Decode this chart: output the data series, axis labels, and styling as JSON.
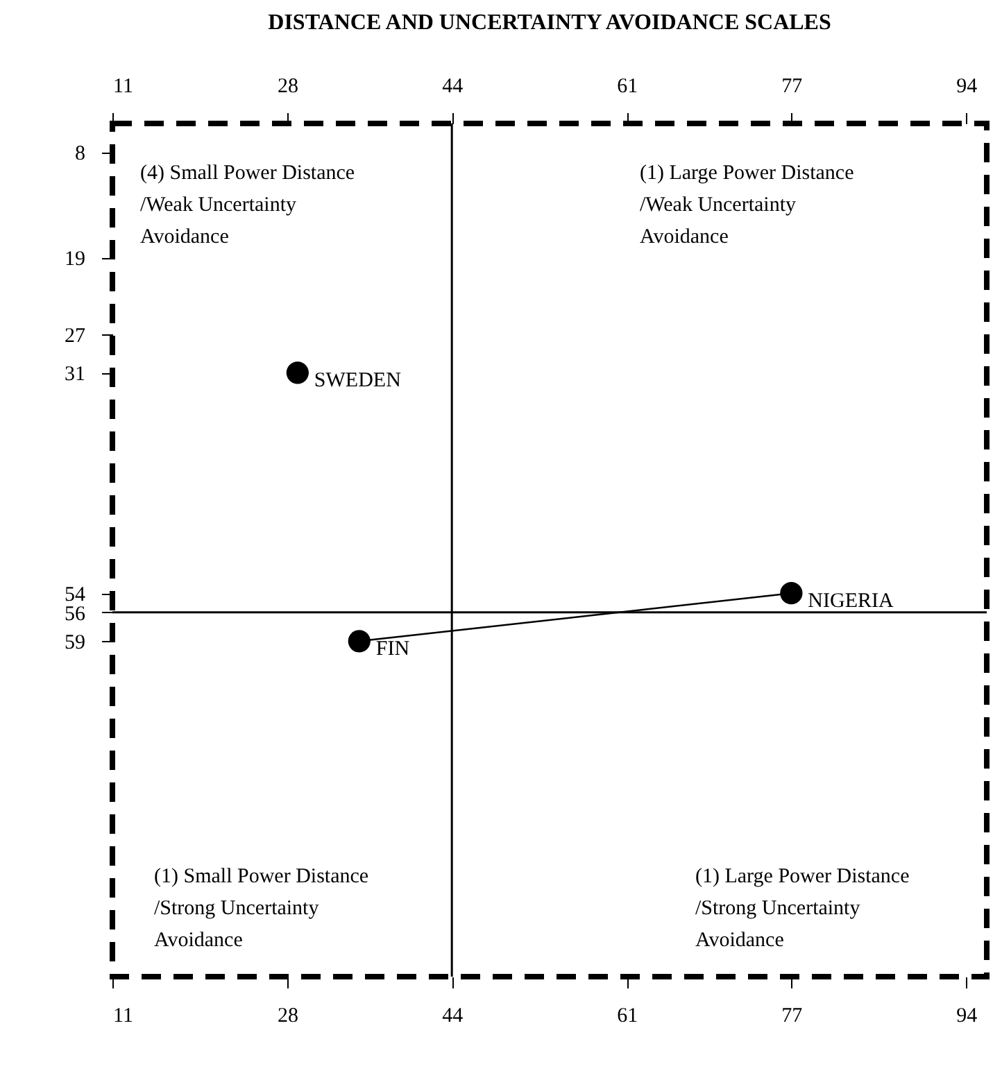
{
  "chart_data": {
    "type": "scatter",
    "title": "DISTANCE AND UNCERTAINTY AVOIDANCE SCALES",
    "x": [
      29,
      35,
      77
    ],
    "series": [
      {
        "color": "#000000",
        "values": [
          31,
          59,
          54
        ]
      }
    ],
    "marker": "circle",
    "grid": false,
    "xlim": [
      11,
      96
    ],
    "xticks": [
      11,
      28,
      44,
      61,
      77,
      94
    ],
    "x2lim": [
      11,
      96
    ],
    "x2ticks": [
      11,
      28,
      44,
      61,
      77,
      94
    ],
    "ylim": [
      94,
      5
    ],
    "yticks": [
      8,
      19,
      27,
      31,
      54,
      56,
      59
    ],
    "ref_lines": [
      {
        "axis": "x",
        "value": 44,
        "color": "#000000"
      },
      {
        "axis": "y",
        "value": 56,
        "color": "#000000"
      }
    ],
    "annotations": [
      {
        "text": "SWEDEN",
        "x": 29,
        "y": 31
      },
      {
        "text": "FIN",
        "x": 35,
        "y": 59
      },
      {
        "text": "NIGERIA",
        "x": 77,
        "y": 54
      },
      "(4) Small Power Distance\n/Weak Uncertainty\nAvoidance",
      "(1) Large Power Distance\n/Weak Uncertainty\nAvoidance",
      "(1) Small Power Distance\n/Strong Uncertainty\nAvoidance",
      "(1) Large Power Distance\n/Strong Uncertainty\nAvoidance"
    ]
  }
}
